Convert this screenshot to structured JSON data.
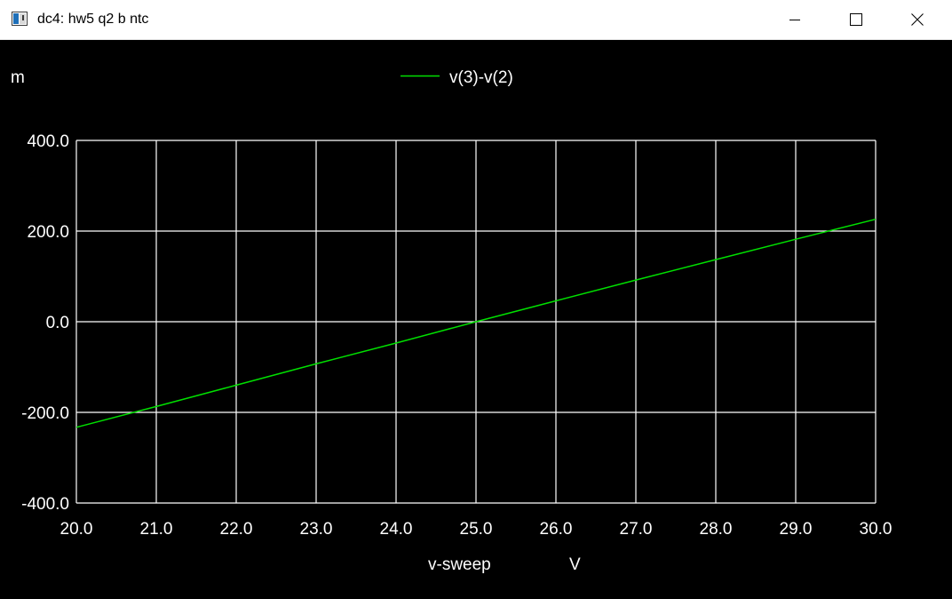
{
  "window": {
    "title": "dc4: hw5 q2 b ntc",
    "icon": "app-window-icon",
    "controls": {
      "minimize_icon": "minimize-icon",
      "maximize_icon": "maximize-icon",
      "close_icon": "close-icon"
    }
  },
  "colors": {
    "background": "#000000",
    "grid": "#ffffff",
    "trace": "#00e000",
    "text": "#ffffff",
    "titlebar": "#ffffff"
  },
  "chart_data": {
    "type": "line",
    "title": "",
    "y_unit_label": "m",
    "xlabel": "v-sweep",
    "xunit": "V",
    "xlim": [
      20.0,
      30.0
    ],
    "ylim": [
      -400.0,
      400.0
    ],
    "x_ticks": [
      "20.0",
      "21.0",
      "22.0",
      "23.0",
      "24.0",
      "25.0",
      "26.0",
      "27.0",
      "28.0",
      "29.0",
      "30.0"
    ],
    "y_ticks": [
      "400.0",
      "200.0",
      "0.0",
      "-200.0",
      "-400.0"
    ],
    "grid": true,
    "legend_position": "top-center",
    "series": [
      {
        "name": "v(3)-v(2)",
        "color": "#00e000",
        "x": [
          20.0,
          21.0,
          22.0,
          23.0,
          24.0,
          25.0,
          26.0,
          27.0,
          28.0,
          29.0,
          30.0
        ],
        "y": [
          -233,
          -187,
          -140,
          -93,
          -47,
          0,
          46,
          92,
          137,
          182,
          226
        ]
      }
    ]
  }
}
